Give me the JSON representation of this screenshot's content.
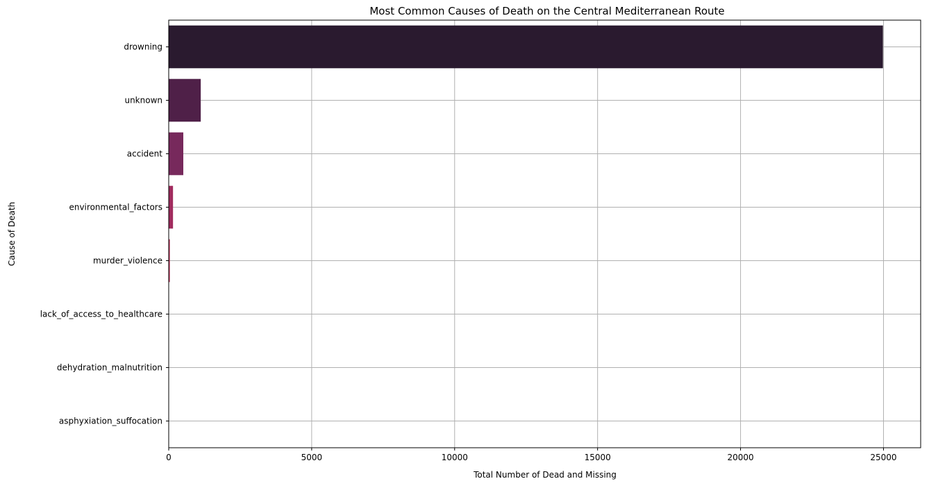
{
  "chart_data": {
    "type": "bar",
    "orientation": "horizontal",
    "title": "Most Common Causes of Death on the Central Mediterranean Route",
    "xlabel": "Total Number of Dead and Missing",
    "ylabel": "Cause of Death",
    "categories": [
      "drowning",
      "unknown",
      "accident",
      "environmental_factors",
      "murder_violence",
      "lack_of_access_to_healthcare",
      "dehydration_malnutrition",
      "asphyxiation_suffocation"
    ],
    "values": [
      24980,
      1120,
      510,
      150,
      40,
      12,
      8,
      5
    ],
    "colors": [
      "#2a1a2f",
      "#4f2048",
      "#77295c",
      "#a12b5e",
      "#ba3057",
      "#cc3a4f",
      "#d74a49",
      "#e0623f"
    ],
    "xlim": [
      0,
      26300
    ],
    "xticks": [
      0,
      5000,
      10000,
      15000,
      20000,
      25000
    ],
    "grid": true
  }
}
